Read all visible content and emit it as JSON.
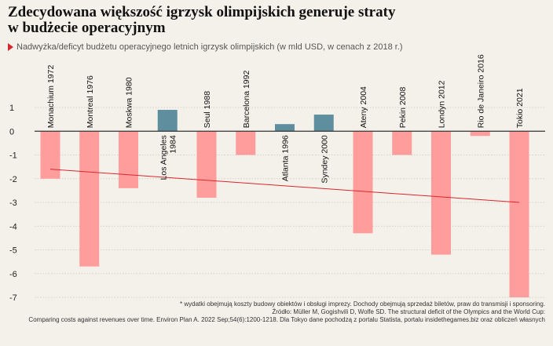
{
  "title_line1": "Zdecydowana większość igrzysk olimpijskich generuje straty",
  "title_line2": "w budżecie operacyjnym",
  "subtitle": "Nadwyżka/deficyt budżetu operacyjnego letnich igrzysk olimpijskich (w mld USD, w cenach z 2018 r.)",
  "colors": {
    "deficit": "#ff9c9c",
    "surplus": "#5f8f9e",
    "trend": "#d9262e",
    "background": "#f4f1ea"
  },
  "footnotes": {
    "line1": "* wydatki obejmują koszty budowy obiektów i obsługi imprezy. Dochody obejmują sprzedaż biletów, praw do transmisji i sponsoring.",
    "line2": "Źródło: Müller M, Gogishvili D, Wolfe SD. The structural deficit of the Olympics and the World Cup:",
    "line3": "Comparing costs against revenues over time. Environ Plan A. 2022 Sep;54(6):1200-1218. Dla Tokyo dane pochodzą z portalu Statista, portalu insidethegames.biz oraz obliczeń własnych"
  },
  "chart_data": {
    "type": "bar",
    "categories": [
      "Monachium 1972",
      "Montreal 1976",
      "Moskwa 1980",
      "Los Angeles 1984",
      "Seul 1988",
      "Barcelona 1992",
      "Atlanta 1996",
      "Syndey 2000",
      "Ateny 2004",
      "Pekin 2008",
      "Londyn 2012",
      "Rio de Janeiro 2016",
      "Tokio 2021"
    ],
    "category_label_lines": [
      [
        "Monachium 1972"
      ],
      [
        "Montreal 1976"
      ],
      [
        "Moskwa 1980"
      ],
      [
        "Los Angeles",
        "1984"
      ],
      [
        "Seul 1988"
      ],
      [
        "Barcelona 1992"
      ],
      [
        "Atlanta 1996"
      ],
      [
        "Syndey 2000"
      ],
      [
        "Ateny 2004"
      ],
      [
        "Pekin 2008"
      ],
      [
        "Londyn 2012"
      ],
      [
        "Rio de Janeiro 2016"
      ],
      [
        "Tokio 2021"
      ]
    ],
    "values": [
      -2.0,
      -5.7,
      -2.4,
      0.9,
      -2.8,
      -1.0,
      0.3,
      0.7,
      -4.3,
      -1.0,
      -5.2,
      -0.2,
      -7.0
    ],
    "ylim": [
      -7,
      1
    ],
    "yticks": [
      1,
      0,
      -1,
      -2,
      -3,
      -4,
      -5,
      -6,
      -7
    ],
    "trend": {
      "start": -1.6,
      "end": -3.0
    },
    "grid": true,
    "legend": "none"
  }
}
